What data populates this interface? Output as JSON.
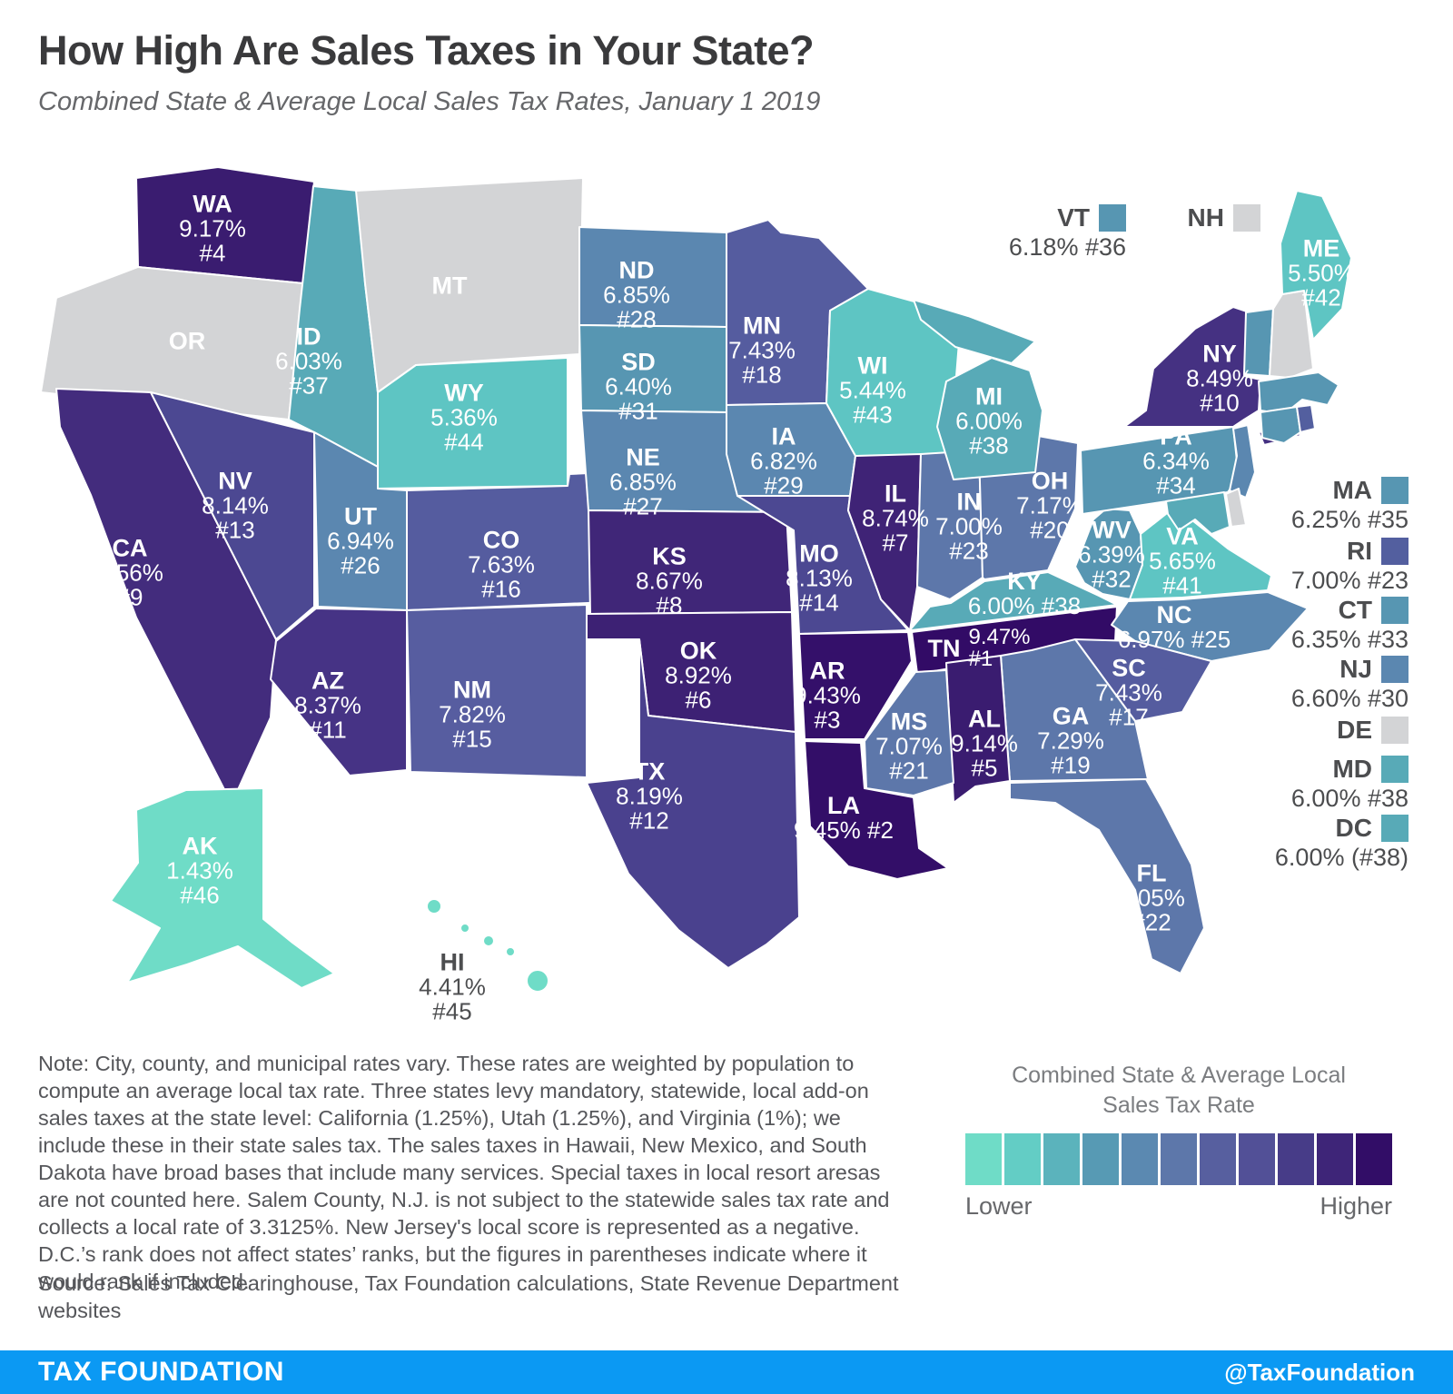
{
  "header": {
    "title": "How High Are Sales Taxes in Your State?",
    "subtitle": "Combined State & Average Local Sales Tax Rates, January 1 2019"
  },
  "map": {
    "states": {
      "WA": {
        "abbr": "WA",
        "rate": "9.17%",
        "rank": "#4",
        "fill": "#3a1c70"
      },
      "OR": {
        "abbr": "OR",
        "fill": "#d3d4d6"
      },
      "MT": {
        "abbr": "MT",
        "fill": "#d3d4d6"
      },
      "ID": {
        "abbr": "ID",
        "rate": "6.03%",
        "rank": "#37",
        "fill": "#58aab7"
      },
      "WY": {
        "abbr": "WY",
        "rate": "5.36%",
        "rank": "#44",
        "fill": "#5ec5c3"
      },
      "NV": {
        "abbr": "NV",
        "rate": "8.14%",
        "rank": "#13",
        "fill": "#4c4892"
      },
      "UT": {
        "abbr": "UT",
        "rate": "6.94%",
        "rank": "#26",
        "fill": "#5b87b0"
      },
      "CA": {
        "abbr": "CA",
        "rate": "8.56%",
        "rank": "#9",
        "fill": "#432c7d"
      },
      "CO": {
        "abbr": "CO",
        "rate": "7.63%",
        "rank": "#16",
        "fill": "#555c9f"
      },
      "AZ": {
        "abbr": "AZ",
        "rate": "8.37%",
        "rank": "#11",
        "fill": "#463385"
      },
      "NM": {
        "abbr": "NM",
        "rate": "7.82%",
        "rank": "#15",
        "fill": "#575da0"
      },
      "ND": {
        "abbr": "ND",
        "rate": "6.85%",
        "rank": "#28",
        "fill": "#5b87b0"
      },
      "SD": {
        "abbr": "SD",
        "rate": "6.40%",
        "rank": "#31",
        "fill": "#5796b2"
      },
      "NE": {
        "abbr": "NE",
        "rate": "6.85%",
        "rank": "#27",
        "fill": "#5b87b0"
      },
      "KS": {
        "abbr": "KS",
        "rate": "8.67%",
        "rank": "#8",
        "fill": "#402678"
      },
      "OK": {
        "abbr": "OK",
        "rate": "8.92%",
        "rank": "#6",
        "fill": "#3d2174"
      },
      "TX": {
        "abbr": "TX",
        "rate": "8.19%",
        "rank": "#12",
        "fill": "#4a418e"
      },
      "MN": {
        "abbr": "MN",
        "rate": "7.43%",
        "rank": "#18",
        "fill": "#555c9f"
      },
      "IA": {
        "abbr": "IA",
        "rate": "6.82%",
        "rank": "#29",
        "fill": "#5b87b0"
      },
      "MO": {
        "abbr": "MO",
        "rate": "8.13%",
        "rank": "#14",
        "fill": "#4c4892"
      },
      "AR": {
        "abbr": "AR",
        "rate": "9.43%",
        "rank": "#3",
        "fill": "#34106a"
      },
      "LA": {
        "abbr": "LA",
        "rate": "9.45%",
        "rank": "#2",
        "fill": "#330e68"
      },
      "WI": {
        "abbr": "WI",
        "rate": "5.44%",
        "rank": "#43",
        "fill": "#5ec5c3"
      },
      "IL": {
        "abbr": "IL",
        "rate": "8.74%",
        "rank": "#7",
        "fill": "#3f2376"
      },
      "MS": {
        "abbr": "MS",
        "rate": "7.07%",
        "rank": "#21",
        "fill": "#5d77aa"
      },
      "MI": {
        "abbr": "MI",
        "rate": "6.00%",
        "rank": "#38",
        "fill": "#58aab7"
      },
      "IN": {
        "abbr": "IN",
        "rate": "7.00%",
        "rank": "#23",
        "fill": "#5d77aa"
      },
      "KY": {
        "abbr": "KY",
        "rate": "6.00%",
        "rank": "#38",
        "fill": "#58aab7"
      },
      "TN": {
        "abbr": "TN",
        "rate": "9.47%",
        "rank": "#1",
        "fill": "#320b66"
      },
      "AL": {
        "abbr": "AL",
        "rate": "9.14%",
        "rank": "#5",
        "fill": "#3a1c70"
      },
      "OH": {
        "abbr": "OH",
        "rate": "7.17%",
        "rank": "#20",
        "fill": "#5d77aa"
      },
      "GA": {
        "abbr": "GA",
        "rate": "7.29%",
        "rank": "#19",
        "fill": "#5d77aa"
      },
      "WV": {
        "abbr": "WV",
        "rate": "6.39%",
        "rank": "#32",
        "fill": "#5796b2"
      },
      "VA": {
        "abbr": "VA",
        "rate": "5.65%",
        "rank": "#41",
        "fill": "#5ec5c3"
      },
      "NC": {
        "abbr": "NC",
        "rate": "6.97%",
        "rank": "#25",
        "fill": "#5b87b0"
      },
      "SC": {
        "abbr": "SC",
        "rate": "7.43%",
        "rank": "#17",
        "fill": "#555c9f"
      },
      "FL": {
        "abbr": "FL",
        "rate": "7.05%",
        "rank": "#22",
        "fill": "#5d77aa"
      },
      "PA": {
        "abbr": "PA",
        "rate": "6.34%",
        "rank": "#34",
        "fill": "#5796b2"
      },
      "NY": {
        "abbr": "NY",
        "rate": "8.49%",
        "rank": "#10",
        "fill": "#453182"
      },
      "ME": {
        "abbr": "ME",
        "rate": "5.50%",
        "rank": "#42",
        "fill": "#5ec5c3"
      },
      "AK": {
        "abbr": "AK",
        "rate": "1.43%",
        "rank": "#46",
        "fill": "#6fdcc7"
      },
      "HI": {
        "abbr": "HI",
        "rate": "4.41%",
        "rank": "#45",
        "fill": "#6fdcc7"
      },
      "VT": {
        "abbr": "VT",
        "fill": "#5796b2"
      },
      "NH": {
        "abbr": "NH",
        "fill": "#d3d4d6"
      },
      "MA": {
        "abbr": "MA",
        "fill": "#5796b2"
      },
      "RI": {
        "abbr": "RI",
        "fill": "#535f9f"
      },
      "CT": {
        "abbr": "CT",
        "fill": "#5796b2"
      },
      "NJ": {
        "abbr": "NJ",
        "fill": "#5b87b0"
      },
      "DE": {
        "abbr": "DE",
        "fill": "#d3d4d6"
      },
      "MD": {
        "abbr": "MD",
        "fill": "#58aab7"
      }
    },
    "callouts": [
      {
        "abbr": "VT",
        "value": "6.18% #36",
        "swatch": "#5796b2"
      },
      {
        "abbr": "NH",
        "value": "",
        "swatch": "#d3d4d6"
      }
    ],
    "east_list": [
      {
        "abbr": "MA",
        "value": "6.25% #35",
        "swatch": "#5796b2"
      },
      {
        "abbr": "RI",
        "value": "7.00% #23",
        "swatch": "#535f9f"
      },
      {
        "abbr": "CT",
        "value": "6.35% #33",
        "swatch": "#5796b2"
      },
      {
        "abbr": "NJ",
        "value": "6.60% #30",
        "swatch": "#5b87b0"
      },
      {
        "abbr": "DE",
        "value": "",
        "swatch": "#d3d4d6"
      },
      {
        "abbr": "MD",
        "value": "6.00% #38",
        "swatch": "#58aab7"
      },
      {
        "abbr": "DC",
        "value": "6.00% (#38)",
        "swatch": "#58aab7"
      }
    ]
  },
  "chart_data": {
    "type": "choropleth-map",
    "title": "How High Are Sales Taxes in Your State?",
    "subtitle": "Combined State & Average Local Sales Tax Rates, January 1 2019",
    "series": [
      {
        "state": "TN",
        "rate_pct": 9.47,
        "rank": 1
      },
      {
        "state": "LA",
        "rate_pct": 9.45,
        "rank": 2
      },
      {
        "state": "AR",
        "rate_pct": 9.43,
        "rank": 3
      },
      {
        "state": "WA",
        "rate_pct": 9.17,
        "rank": 4
      },
      {
        "state": "AL",
        "rate_pct": 9.14,
        "rank": 5
      },
      {
        "state": "OK",
        "rate_pct": 8.92,
        "rank": 6
      },
      {
        "state": "IL",
        "rate_pct": 8.74,
        "rank": 7
      },
      {
        "state": "KS",
        "rate_pct": 8.67,
        "rank": 8
      },
      {
        "state": "CA",
        "rate_pct": 8.56,
        "rank": 9
      },
      {
        "state": "NY",
        "rate_pct": 8.49,
        "rank": 10
      },
      {
        "state": "AZ",
        "rate_pct": 8.37,
        "rank": 11
      },
      {
        "state": "TX",
        "rate_pct": 8.19,
        "rank": 12
      },
      {
        "state": "NV",
        "rate_pct": 8.14,
        "rank": 13
      },
      {
        "state": "MO",
        "rate_pct": 8.13,
        "rank": 14
      },
      {
        "state": "NM",
        "rate_pct": 7.82,
        "rank": 15
      },
      {
        "state": "CO",
        "rate_pct": 7.63,
        "rank": 16
      },
      {
        "state": "SC",
        "rate_pct": 7.43,
        "rank": 17
      },
      {
        "state": "MN",
        "rate_pct": 7.43,
        "rank": 18
      },
      {
        "state": "GA",
        "rate_pct": 7.29,
        "rank": 19
      },
      {
        "state": "OH",
        "rate_pct": 7.17,
        "rank": 20
      },
      {
        "state": "MS",
        "rate_pct": 7.07,
        "rank": 21
      },
      {
        "state": "FL",
        "rate_pct": 7.05,
        "rank": 22
      },
      {
        "state": "IN",
        "rate_pct": 7.0,
        "rank": 23
      },
      {
        "state": "RI",
        "rate_pct": 7.0,
        "rank": 23
      },
      {
        "state": "NC",
        "rate_pct": 6.97,
        "rank": 25
      },
      {
        "state": "UT",
        "rate_pct": 6.94,
        "rank": 26
      },
      {
        "state": "NE",
        "rate_pct": 6.85,
        "rank": 27
      },
      {
        "state": "ND",
        "rate_pct": 6.85,
        "rank": 28
      },
      {
        "state": "IA",
        "rate_pct": 6.82,
        "rank": 29
      },
      {
        "state": "NJ",
        "rate_pct": 6.6,
        "rank": 30
      },
      {
        "state": "SD",
        "rate_pct": 6.4,
        "rank": 31
      },
      {
        "state": "WV",
        "rate_pct": 6.39,
        "rank": 32
      },
      {
        "state": "CT",
        "rate_pct": 6.35,
        "rank": 33
      },
      {
        "state": "PA",
        "rate_pct": 6.34,
        "rank": 34
      },
      {
        "state": "MA",
        "rate_pct": 6.25,
        "rank": 35
      },
      {
        "state": "VT",
        "rate_pct": 6.18,
        "rank": 36
      },
      {
        "state": "ID",
        "rate_pct": 6.03,
        "rank": 37
      },
      {
        "state": "KY",
        "rate_pct": 6.0,
        "rank": 38
      },
      {
        "state": "MD",
        "rate_pct": 6.0,
        "rank": 38
      },
      {
        "state": "MI",
        "rate_pct": 6.0,
        "rank": 38
      },
      {
        "state": "DC",
        "rate_pct": 6.0,
        "rank": 38
      },
      {
        "state": "VA",
        "rate_pct": 5.65,
        "rank": 41
      },
      {
        "state": "ME",
        "rate_pct": 5.5,
        "rank": 42
      },
      {
        "state": "WI",
        "rate_pct": 5.44,
        "rank": 43
      },
      {
        "state": "WY",
        "rate_pct": 5.36,
        "rank": 44
      },
      {
        "state": "HI",
        "rate_pct": 4.41,
        "rank": 45
      },
      {
        "state": "AK",
        "rate_pct": 1.43,
        "rank": 46
      }
    ],
    "no_data_states": [
      "OR",
      "MT",
      "NH",
      "DE"
    ],
    "legend_position": "bottom-right"
  },
  "legend": {
    "title_line1": "Combined State & Average Local",
    "title_line2": "Sales Tax Rate",
    "lower": "Lower",
    "higher": "Higher",
    "colors": [
      "#6fdcc7",
      "#63cdc5",
      "#5bb3bc",
      "#579ab4",
      "#5b89b1",
      "#5d77aa",
      "#575f9f",
      "#525097",
      "#473c88",
      "#3e2578",
      "#320d67"
    ]
  },
  "note": {
    "text": "Note: City, county, and municipal rates vary. These rates are weighted by population to compute an average local tax rate. Three states levy mandatory, statewide, local add-on sales taxes at the state level: California (1.25%), Utah (1.25%), and Virginia (1%); we include these in their state sales tax. The sales taxes in Hawaii, New Mexico, and South Dakota have broad bases that include many services. Special taxes in local resort aresas are not counted here. Salem County, N.J. is not subject to the statewide sales tax rate and collects a local rate of 3.3125%. New Jersey's local score is represented as a negative. D.C.’s rank does not affect states’ ranks, but the figures in parentheses indicate where it would rank if included."
  },
  "source": {
    "text": "Source: Sales Tax Clearinghouse, Tax Foundation calculations, State Revenue Department websites"
  },
  "footer": {
    "brand": "TAX FOUNDATION",
    "handle": "@TaxFoundation"
  }
}
